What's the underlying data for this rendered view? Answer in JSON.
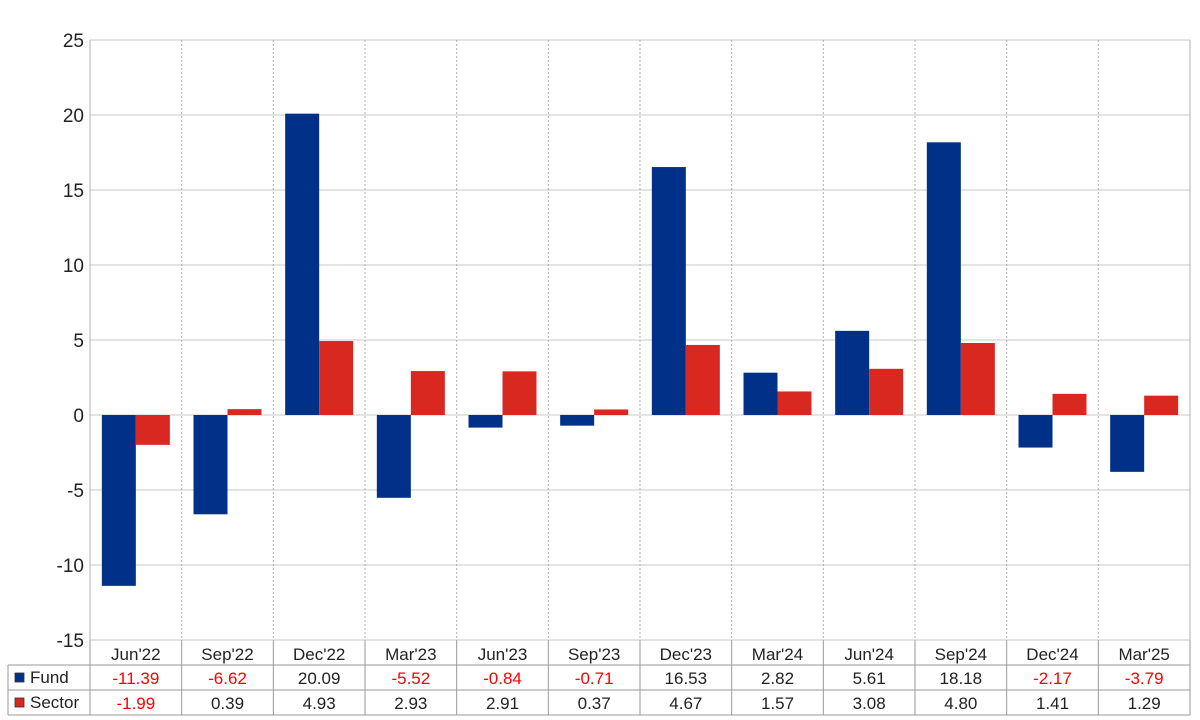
{
  "chart_data": {
    "type": "bar",
    "categories": [
      "Jun'22",
      "Sep'22",
      "Dec'22",
      "Mar'23",
      "Jun'23",
      "Sep'23",
      "Dec'23",
      "Mar'24",
      "Jun'24",
      "Sep'24",
      "Dec'24",
      "Mar'25"
    ],
    "series": [
      {
        "name": "Fund",
        "color": "#003087",
        "values": [
          -11.39,
          -6.62,
          20.09,
          -5.52,
          -0.84,
          -0.71,
          16.53,
          2.82,
          5.61,
          18.18,
          -2.17,
          -3.79
        ],
        "labels": [
          "-11.39",
          "-6.62",
          "20.09",
          "-5.52",
          "-0.84",
          "-0.71",
          "16.53",
          "2.82",
          "5.61",
          "18.18",
          "-2.17",
          "-3.79"
        ]
      },
      {
        "name": "Sector",
        "color": "#d9281f",
        "values": [
          -1.99,
          0.39,
          4.93,
          2.93,
          2.91,
          0.37,
          4.67,
          1.57,
          3.08,
          4.8,
          1.41,
          1.29
        ],
        "labels": [
          "-1.99",
          "0.39",
          "4.93",
          "2.93",
          "2.91",
          "0.37",
          "4.67",
          "1.57",
          "3.08",
          "4.80",
          "1.41",
          "1.29"
        ]
      }
    ],
    "yticks": [
      "25",
      "20",
      "15",
      "10",
      "5",
      "0",
      "-5",
      "-10",
      "-15"
    ],
    "ylim": [
      -15,
      25
    ],
    "grid": true,
    "legend": "table below chart",
    "title": "",
    "xlabel": "",
    "ylabel": "",
    "negative_label_color": "#ff0000",
    "positive_label_color": "#222222"
  }
}
